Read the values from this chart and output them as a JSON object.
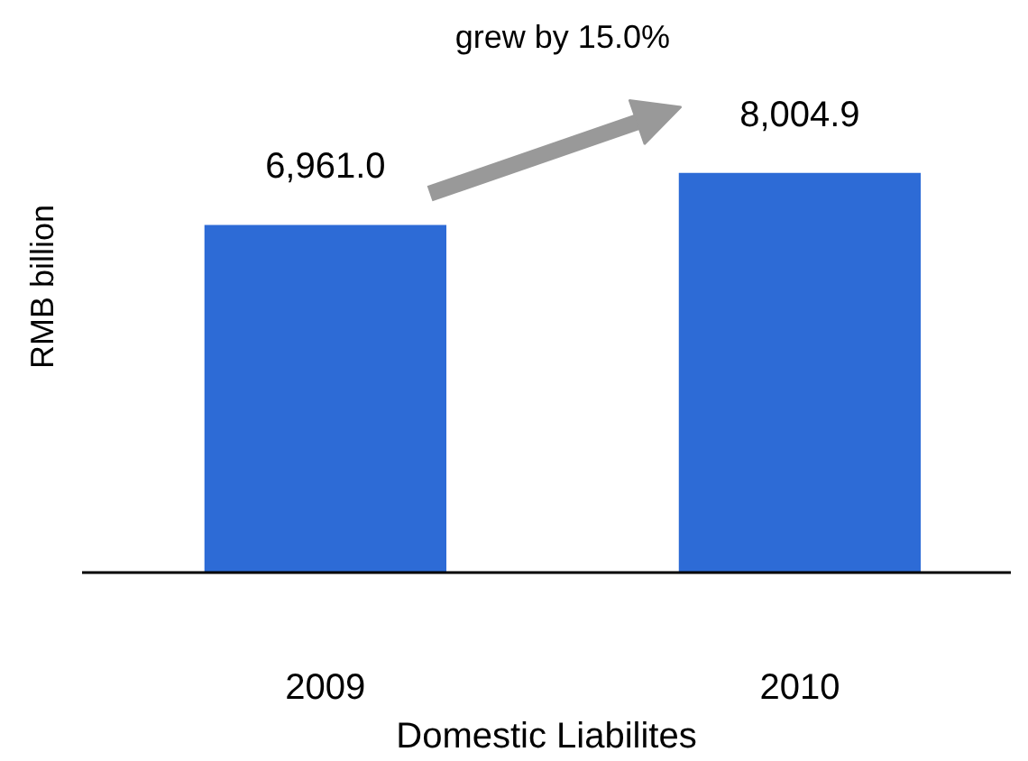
{
  "chart_data": {
    "type": "bar",
    "xlabel": "Domestic Liabilites",
    "ylabel": "RMB billion",
    "categories": [
      "2009",
      "2010"
    ],
    "values": [
      6961.0,
      8004.9
    ],
    "value_labels": [
      "6,961.0",
      "8,004.9"
    ],
    "color": "#2d6bd6",
    "annotations": [
      "grew by 15.0%"
    ],
    "grid": false
  }
}
